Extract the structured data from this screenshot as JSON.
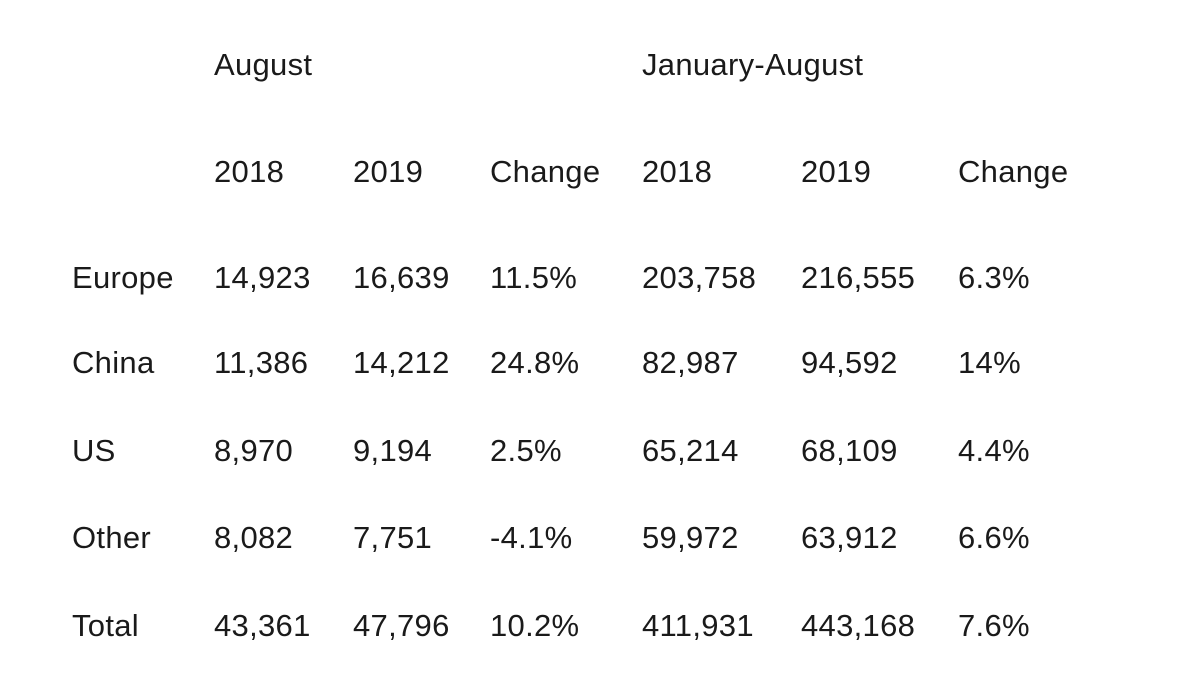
{
  "table": {
    "group_headers": [
      "August",
      "January-August"
    ],
    "sub_headers": [
      "2018",
      "2019",
      "Change",
      "2018",
      "2019",
      "Change"
    ],
    "rows": [
      {
        "label": "Europe",
        "values": [
          "14,923",
          "16,639",
          "11.5%",
          "203,758",
          "216,555",
          "6.3%"
        ]
      },
      {
        "label": "China",
        "values": [
          "11,386",
          "14,212",
          "24.8%",
          "82,987",
          "94,592",
          "14%"
        ]
      },
      {
        "label": "US",
        "values": [
          "8,970",
          "9,194",
          "2.5%",
          "65,214",
          "68,109",
          "4.4%"
        ]
      },
      {
        "label": "Other",
        "values": [
          "8,082",
          "7,751",
          "-4.1%",
          "59,972",
          "63,912",
          "6.6%"
        ]
      },
      {
        "label": "Total",
        "values": [
          "43,361",
          "47,796",
          "10.2%",
          "411,931",
          "443,168",
          "7.6%"
        ]
      }
    ]
  }
}
